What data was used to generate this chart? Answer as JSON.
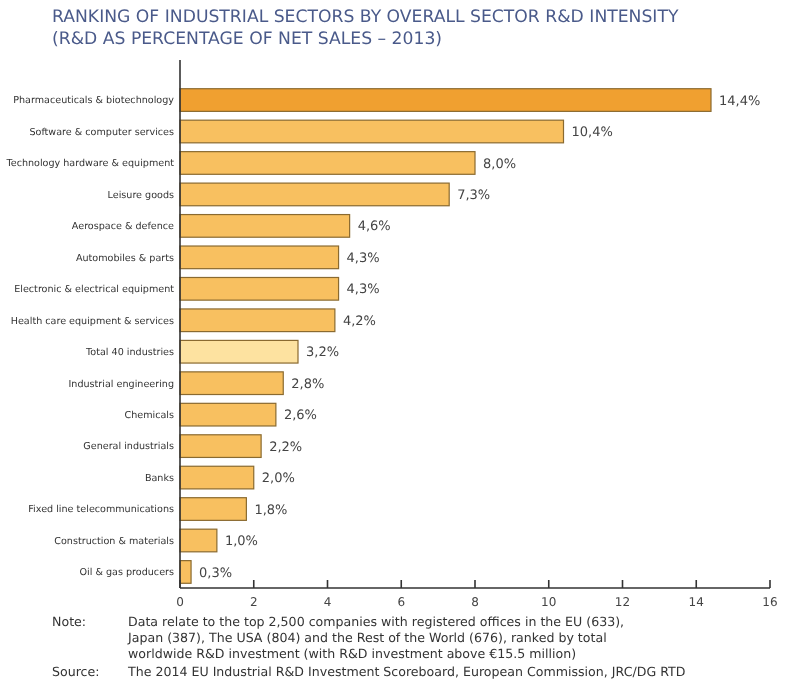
{
  "chart_data": {
    "type": "bar",
    "orientation": "horizontal",
    "title": "RANKING OF INDUSTRIAL SECTORS BY OVERALL SECTOR R&D INTENSITY",
    "subtitle": "(R&D AS PERCENTAGE OF NET SALES – 2013)",
    "categories": [
      "Pharmaceuticals & biotechnology",
      "Software & computer services",
      "Technology hardware & equipment",
      "Leisure goods",
      "Aerospace & defence",
      "Automobiles & parts",
      "Electronic & electrical equipment",
      "Health care equipment & services",
      "Total 40 industries",
      "Industrial engineering",
      "Chemicals",
      "General industrials",
      "Banks",
      "Fixed line telecommunications",
      "Construction & materials",
      "Oil & gas producers"
    ],
    "values": [
      14.4,
      10.4,
      8.0,
      7.3,
      4.6,
      4.3,
      4.3,
      4.2,
      3.2,
      2.8,
      2.6,
      2.2,
      2.0,
      1.8,
      1.0,
      0.3
    ],
    "value_labels": [
      "14,4%",
      "10,4%",
      "8,0%",
      "7,3%",
      "4,6%",
      "4,3%",
      "4,3%",
      "4,2%",
      "3,2%",
      "2,8%",
      "2,6%",
      "2,2%",
      "2,0%",
      "1,8%",
      "1,0%",
      "0,3%"
    ],
    "colors": [
      "#f0a030",
      "#f8c060",
      "#f8c060",
      "#f8c060",
      "#f8c060",
      "#f8c060",
      "#f8c060",
      "#f8c060",
      "#fde2a0",
      "#f8c060",
      "#f8c060",
      "#f8c060",
      "#f8c060",
      "#f8c060",
      "#f8c060",
      "#f8c060"
    ],
    "xlim": [
      0,
      16
    ],
    "xticks": [
      0,
      2,
      4,
      6,
      8,
      10,
      12,
      14,
      16
    ],
    "grid": false,
    "annotations": [
      "Note: Data relate to the top 2,500 companies with registered offices in the EU (633), Japan (387), The USA (804) and the Rest of the World (676), ranked by total worldwide R&D investment (with R&D investment above €15.5 million)",
      "Source: The 2014 EU Industrial R&D Investment Scoreboard, European Commission, JRC/DG RTD"
    ]
  }
}
